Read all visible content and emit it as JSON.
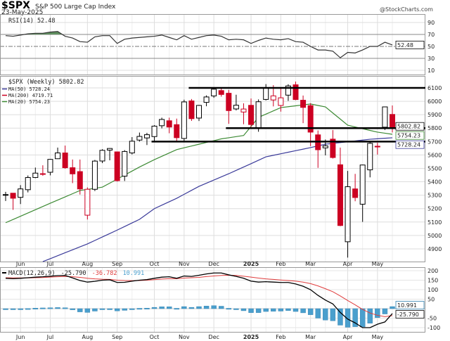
{
  "header": {
    "symbol": "$SPX",
    "name": "S&P 500 Large Cap Index",
    "date": "23-May-2025",
    "credit": "@StockCharts.com"
  },
  "colors": {
    "up": "#000000",
    "down": "#cc0022",
    "ma20": "#3d8a34",
    "ma50": "#3b3b9a",
    "ma200": "#cc0022",
    "macd": "#000000",
    "signal": "#e03c3c",
    "histogram": "#4a9fcd",
    "rsi_fill": "#5f8f5f"
  },
  "rsi": {
    "legend": "RSI(14) 52.48",
    "tag": "52.48",
    "ticks": [
      "90",
      "70",
      "50",
      "30",
      "10"
    ],
    "tick_values": [
      90,
      70,
      50,
      30,
      10
    ],
    "values": [
      68,
      67,
      69,
      71,
      72,
      72,
      74,
      75,
      67,
      64,
      58,
      57,
      66,
      68,
      68,
      55,
      62,
      64,
      65,
      66,
      67,
      69,
      65,
      61,
      68,
      62,
      65,
      68,
      69,
      67,
      61,
      62,
      61,
      55,
      60,
      64,
      62,
      61,
      63,
      58,
      57,
      50,
      44,
      44,
      42,
      31,
      40,
      39,
      44,
      50,
      50,
      57,
      52.48
    ]
  },
  "legend": {
    "price": "$SPX (Weekly) 5802.82",
    "ma50": "MA(50) 5728.24",
    "ma200": "MA(200) 4719.71",
    "ma20": "MA(20) 5754.23"
  },
  "price_tags": {
    "close": "5802.82",
    "ma20": "5754.23",
    "ma50": "5728.24"
  },
  "macd": {
    "legend_name": "MACD(12,26,9)",
    "legend_macd": "-25.790",
    "legend_signal": "-36.782",
    "legend_hist": "10.991",
    "tags": {
      "hist": "10.991",
      "macd": "-25.790"
    },
    "ticks": [
      "200",
      "150",
      "100",
      "50",
      "-50",
      "-100"
    ],
    "tick_values": [
      200,
      150,
      100,
      50,
      -50,
      -100
    ]
  },
  "chart_data": {
    "type": "candlestick",
    "title": "$SPX S&P 500 Large Cap Index",
    "interval": "Weekly",
    "ylim": [
      4780,
      6180
    ],
    "yticks": [
      6100,
      6000,
      5900,
      5800,
      5700,
      5600,
      5500,
      5400,
      5300,
      5200,
      5100,
      5000,
      4900
    ],
    "xticks": [
      [
        "Jun",
        "2024-06-07"
      ],
      [
        "Jul",
        "2024-07-05"
      ],
      [
        "Aug",
        "2024-08-09"
      ],
      [
        "Sep",
        "2024-09-06"
      ],
      [
        "Oct",
        "2024-10-11"
      ],
      [
        "Nov",
        "2024-11-08"
      ],
      [
        "Dec",
        "2024-12-06"
      ],
      [
        "2025",
        "2025-01-10"
      ],
      [
        "Feb",
        "2025-02-07"
      ],
      [
        "Mar",
        "2025-03-07"
      ],
      [
        "Apr",
        "2025-04-11"
      ],
      [
        "May",
        "2025-05-09"
      ]
    ],
    "candles": [
      [
        "2024-05-24",
        5301,
        5325,
        5257,
        5304.72
      ],
      [
        "2024-05-31",
        5315,
        5315,
        5191,
        5277.51
      ],
      [
        "2024-06-07",
        5284,
        5375,
        5234,
        5346.99
      ],
      [
        "2024-06-14",
        5341,
        5447,
        5321,
        5431.6
      ],
      [
        "2024-06-21",
        5432,
        5506,
        5427,
        5464.62
      ],
      [
        "2024-06-28",
        5460,
        5523,
        5445,
        5460.48
      ],
      [
        "2024-07-05",
        5471,
        5570,
        5448,
        5567.19
      ],
      [
        "2024-07-12",
        5572,
        5655,
        5570,
        5615.35
      ],
      [
        "2024-07-19",
        5615,
        5670,
        5497,
        5505.0
      ],
      [
        "2024-07-26",
        5505,
        5566,
        5390,
        5459.1
      ],
      [
        "2024-08-02",
        5476,
        5566,
        5305,
        5346.56
      ],
      [
        "2024-08-09",
        5151,
        5358,
        5119,
        5344.16
      ],
      [
        "2024-08-16",
        5344,
        5563,
        5331,
        5554.25
      ],
      [
        "2024-08-23",
        5555,
        5643,
        5539,
        5634.61
      ],
      [
        "2024-08-30",
        5636,
        5651,
        5560,
        5648.4
      ],
      [
        "2024-09-06",
        5623,
        5623,
        5402,
        5408.42
      ],
      [
        "2024-09-13",
        5442,
        5636,
        5406,
        5626.02
      ],
      [
        "2024-09-20",
        5615,
        5733,
        5604,
        5702.55
      ],
      [
        "2024-09-27",
        5711,
        5767,
        5700,
        5738.17
      ],
      [
        "2024-10-04",
        5727,
        5765,
        5674,
        5751.07
      ],
      [
        "2024-10-11",
        5737,
        5822,
        5696,
        5815.03
      ],
      [
        "2024-10-18",
        5818,
        5878,
        5798,
        5864.67
      ],
      [
        "2024-10-25",
        5855,
        5878,
        5762,
        5808.12
      ],
      [
        "2024-11-01",
        5826,
        5871,
        5700,
        5728.8
      ],
      [
        "2024-11-08",
        5723,
        6012,
        5696,
        5995.54
      ],
      [
        "2024-11-15",
        6003,
        6017,
        5854,
        5870.62
      ],
      [
        "2024-11-22",
        5875,
        5973,
        5853,
        5969.34
      ],
      [
        "2024-11-29",
        5992,
        6044,
        5963,
        6032.38
      ],
      [
        "2024-12-06",
        6040,
        6099,
        6026,
        6090.27
      ],
      [
        "2024-12-13",
        6080,
        6100,
        6035,
        6051.09
      ],
      [
        "2024-12-20",
        6060,
        6085,
        5832,
        5930.85
      ],
      [
        "2024-12-27",
        5943,
        6049,
        5932,
        5970.84
      ],
      [
        "2025-01-03",
        5920,
        5985,
        5829,
        5942.47
      ],
      [
        "2025-01-10",
        5970,
        6021,
        5809,
        5827.04
      ],
      [
        "2025-01-17",
        5800,
        6014,
        5773,
        5996.66
      ],
      [
        "2025-01-24",
        6014,
        6128,
        6007,
        6101.24
      ],
      [
        "2025-01-31",
        6010,
        6120,
        5962,
        6040.53
      ],
      [
        "2025-02-07",
        5969,
        6101,
        5923,
        6025.99
      ],
      [
        "2025-02-14",
        6046,
        6127,
        6003,
        6114.63
      ],
      [
        "2025-02-21",
        6123,
        6147,
        6008,
        6013.13
      ],
      [
        "2025-02-28",
        6008,
        6043,
        5837,
        5954.5
      ],
      [
        "2025-03-07",
        5968,
        5986,
        5666,
        5770.2
      ],
      [
        "2025-03-14",
        5750,
        5783,
        5504,
        5638.94
      ],
      [
        "2025-03-21",
        5653,
        5715,
        5597,
        5667.56
      ],
      [
        "2025-03-28",
        5718,
        5786,
        5573,
        5580.94
      ],
      [
        "2025-04-04",
        5527,
        5655,
        5069,
        5074.08
      ],
      [
        "2025-04-11",
        4953,
        5481,
        4835,
        5363.36
      ],
      [
        "2025-04-18",
        5347,
        5459,
        5255,
        5282.7
      ],
      [
        "2025-04-25",
        5233,
        5528,
        5101,
        5525.21
      ],
      [
        "2025-05-02",
        5489,
        5700,
        5433,
        5686.67
      ],
      [
        "2025-05-09",
        5665,
        5691,
        5603,
        5659.91
      ],
      [
        "2025-05-16",
        5807,
        5958,
        5786,
        5958.38
      ],
      [
        "2025-05-23",
        5902,
        5969,
        5768,
        5802.82
      ]
    ],
    "ma20": [
      [
        "2024-05-24",
        5095
      ],
      [
        "2024-07-05",
        5240
      ],
      [
        "2024-08-02",
        5335
      ],
      [
        "2024-08-23",
        5360
      ],
      [
        "2024-09-13",
        5450
      ],
      [
        "2024-09-27",
        5510
      ],
      [
        "2024-10-11",
        5565
      ],
      [
        "2024-11-01",
        5640
      ],
      [
        "2024-12-13",
        5720
      ],
      [
        "2025-01-03",
        5745
      ],
      [
        "2025-01-17",
        5880
      ],
      [
        "2025-02-07",
        5953
      ],
      [
        "2025-03-07",
        5980
      ],
      [
        "2025-03-21",
        5958
      ],
      [
        "2025-04-11",
        5822
      ],
      [
        "2025-05-09",
        5770
      ],
      [
        "2025-05-23",
        5754.23
      ]
    ],
    "ma50": [
      [
        "2024-06-28",
        4805
      ],
      [
        "2024-08-09",
        4937
      ],
      [
        "2024-09-06",
        5040
      ],
      [
        "2024-09-27",
        5120
      ],
      [
        "2024-10-11",
        5200
      ],
      [
        "2024-11-01",
        5277
      ],
      [
        "2024-11-22",
        5366
      ],
      [
        "2024-12-20",
        5460
      ],
      [
        "2025-01-10",
        5535
      ],
      [
        "2025-01-24",
        5586
      ],
      [
        "2025-03-07",
        5655
      ],
      [
        "2025-03-21",
        5680
      ],
      [
        "2025-05-02",
        5717
      ],
      [
        "2025-05-23",
        5728.24
      ]
    ],
    "ma200_last": 4719.71,
    "horizontal_lines": [
      {
        "price": 6100,
        "from": "2024-11-15"
      },
      {
        "price": 5800,
        "from": "2024-12-20"
      },
      {
        "price": 5700,
        "from": "2024-10-11"
      }
    ],
    "macd_line": [
      160,
      158,
      160,
      163,
      166,
      168,
      171,
      174,
      175,
      162,
      148,
      140,
      144,
      150,
      152,
      138,
      139,
      145,
      150,
      153,
      160,
      166,
      168,
      160,
      172,
      170,
      176,
      183,
      188,
      188,
      178,
      170,
      160,
      145,
      140,
      142,
      140,
      138,
      138,
      130,
      118,
      100,
      70,
      45,
      25,
      -20,
      -55,
      -75,
      -100,
      -100,
      -82,
      -70,
      -25.79
    ],
    "signal_line": [
      163,
      162,
      162,
      162,
      163,
      164,
      166,
      168,
      170,
      168,
      165,
      160,
      157,
      155,
      154,
      150,
      148,
      147,
      148,
      150,
      153,
      156,
      158,
      158,
      161,
      163,
      165,
      169,
      172,
      175,
      176,
      175,
      171,
      166,
      161,
      157,
      154,
      151,
      148,
      145,
      140,
      132,
      120,
      105,
      89,
      67,
      43,
      20,
      -4,
      -23,
      -35,
      -42,
      -36.782
    ]
  }
}
